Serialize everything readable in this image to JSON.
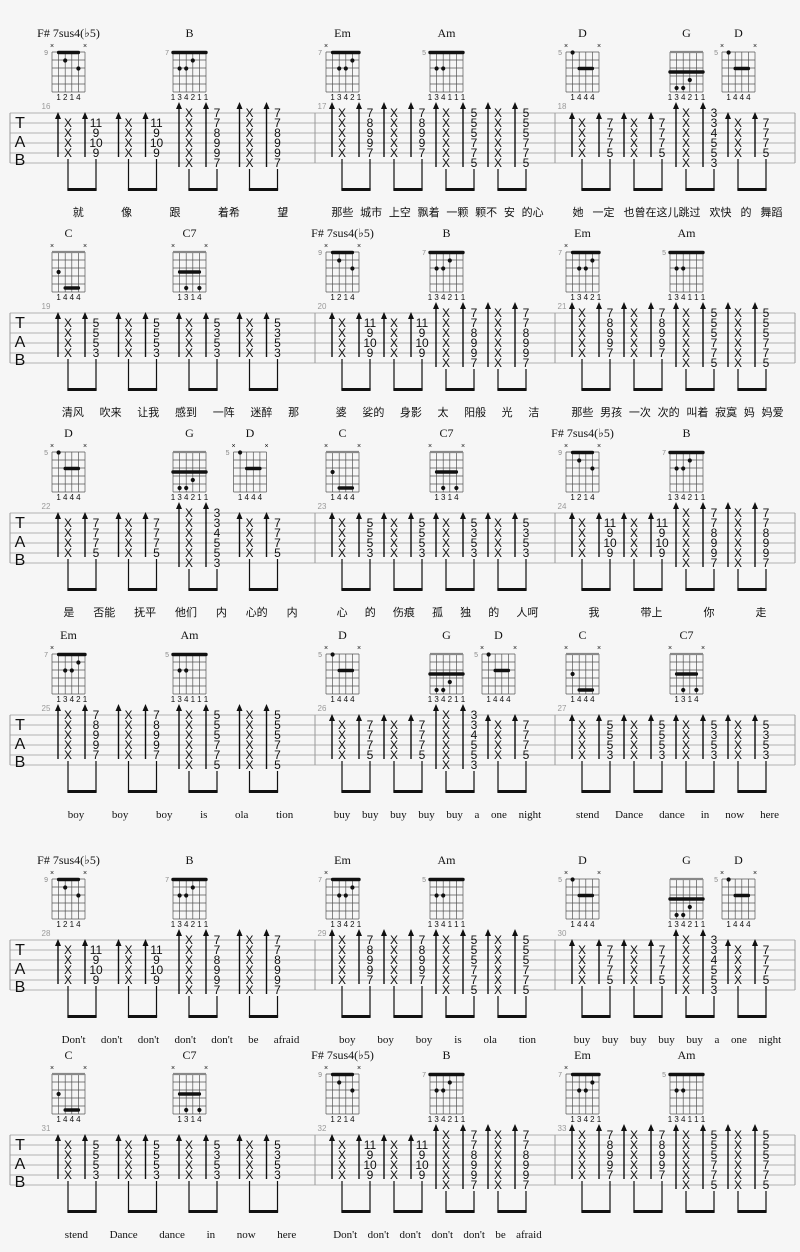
{
  "tab_clef": [
    "T",
    "A",
    "B"
  ],
  "colors": {
    "ink": "#111111",
    "staff": "#9a9a9a",
    "measure_number": "#9a9a9a",
    "background": "#f6f6f6"
  },
  "chords": {
    "Fs7sus4b5": {
      "name": "F# 7sus4(♭5)",
      "base_fret": 9,
      "fingers": "1214",
      "barre": {
        "fret": 9,
        "from_string": 5,
        "to_string": 2
      },
      "tab": [
        null,
        11,
        9,
        10,
        9,
        null
      ]
    },
    "B": {
      "name": "B",
      "base_fret": 7,
      "fingers": "134211",
      "barre": {
        "fret": 7,
        "from_string": 6,
        "to_string": 1
      },
      "tab": [
        7,
        7,
        8,
        9,
        9,
        7
      ]
    },
    "Em": {
      "name": "Em",
      "base_fret": 7,
      "fingers": "13421",
      "barre": {
        "fret": 7,
        "from_string": 5,
        "to_string": 1
      },
      "tab": [
        7,
        8,
        9,
        9,
        7,
        null
      ]
    },
    "Am": {
      "name": "Am",
      "base_fret": 5,
      "fingers": "134111",
      "barre": {
        "fret": 5,
        "from_string": 6,
        "to_string": 1
      },
      "tab": [
        5,
        5,
        5,
        7,
        7,
        5
      ]
    },
    "D": {
      "name": "D",
      "base_fret": 5,
      "fingers": "1444",
      "barre": {
        "fret": 7,
        "from_string": 4,
        "to_string": 2
      },
      "tab": [
        null,
        7,
        7,
        7,
        5,
        null
      ]
    },
    "G": {
      "name": "G",
      "base_fret": null,
      "fingers": "134211",
      "barre": {
        "fret": 3,
        "from_string": 6,
        "to_string": 1
      },
      "tab": [
        3,
        3,
        4,
        5,
        5,
        3
      ]
    },
    "C": {
      "name": "C",
      "base_fret": null,
      "fingers": "1444",
      "barre": {
        "fret": 5,
        "from_string": 4,
        "to_string": 2
      },
      "tab": [
        null,
        5,
        5,
        5,
        3,
        null
      ]
    },
    "C7": {
      "name": "C7",
      "base_fret": null,
      "fingers": "1314",
      "barre": {
        "fret": 3,
        "from_string": 5,
        "to_string": 2
      },
      "tab": [
        null,
        5,
        3,
        5,
        3,
        null
      ]
    }
  },
  "systems": [
    {
      "measures": [
        {
          "number": "16",
          "beats": [
            "Fs7sus4b5",
            "Fs7sus4b5",
            "B",
            "B"
          ],
          "lyrics": [
            "就",
            "像",
            "跟",
            "着希",
            "望"
          ]
        },
        {
          "number": "17",
          "beats": [
            "Em",
            "Em",
            "Am",
            "Am"
          ],
          "lyrics": [
            "那些",
            "城市",
            "上空",
            "飘着",
            "一颗",
            "颗不",
            "安",
            "的心"
          ]
        },
        {
          "number": "18",
          "beats": [
            "D",
            "D",
            "G",
            "D"
          ],
          "lyrics": [
            "她",
            "一定",
            "也曾在这儿跳过",
            "欢快",
            "的",
            "舞蹈"
          ]
        }
      ]
    },
    {
      "measures": [
        {
          "number": "19",
          "beats": [
            "C",
            "C",
            "C7",
            "C7"
          ],
          "lyrics": [
            "清风",
            "吹来",
            "让我",
            "感到",
            "一阵",
            "迷醉",
            "那"
          ]
        },
        {
          "number": "20",
          "beats": [
            "Fs7sus4b5",
            "Fs7sus4b5",
            "B",
            "B"
          ],
          "lyrics": [
            "婆",
            "娑的",
            "身影",
            "太",
            "阳般",
            "光",
            "洁"
          ]
        },
        {
          "number": "21",
          "beats": [
            "Em",
            "Em",
            "Am",
            "Am"
          ],
          "lyrics": [
            "那些",
            "男孩",
            "一次",
            "次的",
            "叫着",
            "寂寞",
            "妈",
            "妈爱"
          ]
        }
      ]
    },
    {
      "measures": [
        {
          "number": "22",
          "beats": [
            "D",
            "D",
            "G",
            "D"
          ],
          "lyrics": [
            "是",
            "否能",
            "抚平",
            "他们",
            "内",
            "心的",
            "内"
          ]
        },
        {
          "number": "23",
          "beats": [
            "C",
            "C",
            "C7",
            "C7"
          ],
          "lyrics": [
            "心",
            "的",
            "伤痕",
            "孤",
            "独",
            "的",
            "人呵"
          ]
        },
        {
          "number": "24",
          "beats": [
            "Fs7sus4b5",
            "Fs7sus4b5",
            "B",
            "B"
          ],
          "lyrics": [
            "我",
            "带上",
            "你",
            "走"
          ]
        }
      ]
    },
    {
      "measures": [
        {
          "number": "25",
          "beats": [
            "Em",
            "Em",
            "Am",
            "Am"
          ],
          "lyrics": [
            "boy",
            "boy",
            "boy",
            "is",
            "ola",
            "tion"
          ]
        },
        {
          "number": "26",
          "beats": [
            "D",
            "D",
            "G",
            "D"
          ],
          "lyrics": [
            "buy",
            "buy",
            "buy",
            "buy",
            "buy",
            "a",
            "one",
            "night"
          ]
        },
        {
          "number": "27",
          "beats": [
            "C",
            "C",
            "C7",
            "C7"
          ],
          "lyrics": [
            "stend",
            "Dance",
            "dance",
            "in",
            "now",
            "here"
          ]
        }
      ]
    },
    {
      "measures": [
        {
          "number": "28",
          "beats": [
            "Fs7sus4b5",
            "Fs7sus4b5",
            "B",
            "B"
          ],
          "lyrics": [
            "Don't",
            "don't",
            "don't",
            "don't",
            "don't",
            "be",
            "afraid"
          ]
        },
        {
          "number": "29",
          "beats": [
            "Em",
            "Em",
            "Am",
            "Am"
          ],
          "lyrics": [
            "boy",
            "boy",
            "boy",
            "is",
            "ola",
            "tion"
          ]
        },
        {
          "number": "30",
          "beats": [
            "D",
            "D",
            "G",
            "D"
          ],
          "lyrics": [
            "buy",
            "buy",
            "buy",
            "buy",
            "buy",
            "a",
            "one",
            "night"
          ]
        }
      ]
    },
    {
      "measures": [
        {
          "number": "31",
          "beats": [
            "C",
            "C",
            "C7",
            "C7"
          ],
          "lyrics": [
            "stend",
            "Dance",
            "dance",
            "in",
            "now",
            "here"
          ]
        },
        {
          "number": "32",
          "beats": [
            "Fs7sus4b5",
            "Fs7sus4b5",
            "B",
            "B"
          ],
          "lyrics": [
            "Don't",
            "don't",
            "don't",
            "don't",
            "don't",
            "be",
            "afraid"
          ]
        },
        {
          "number": "33",
          "beats": [
            "Em",
            "Em",
            "Am",
            "Am"
          ],
          "lyrics": []
        }
      ]
    }
  ]
}
